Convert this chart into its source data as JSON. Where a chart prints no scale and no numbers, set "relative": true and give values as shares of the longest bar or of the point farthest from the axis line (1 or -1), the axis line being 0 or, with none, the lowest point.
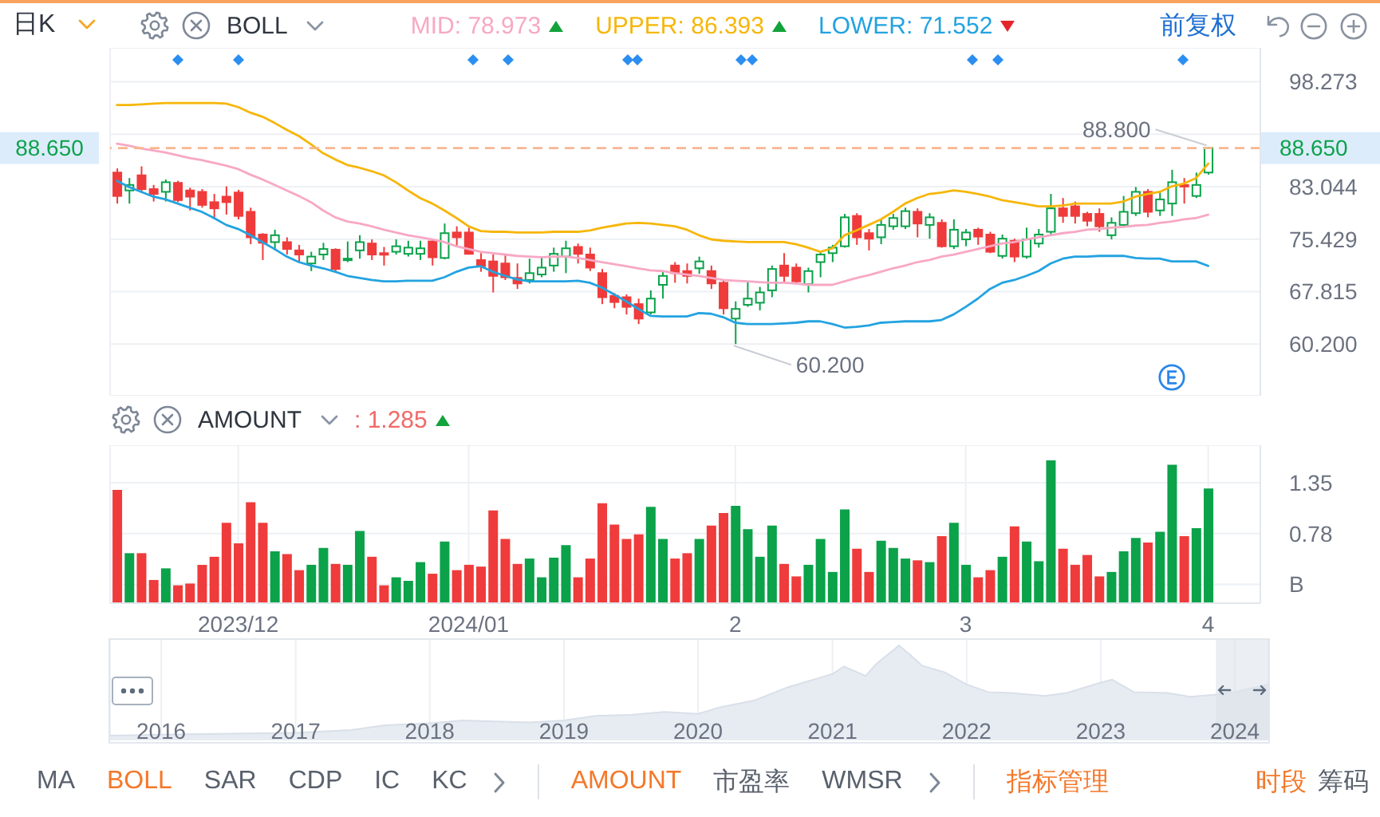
{
  "chart_data": [
    {
      "type": "candlestick",
      "legend_title": "BOLL",
      "legend": "top",
      "categories": [
        null,
        null,
        null,
        null,
        null,
        null,
        null,
        null,
        null,
        null,
        "2023/12",
        null,
        null,
        null,
        null,
        null,
        null,
        null,
        null,
        null,
        null,
        null,
        null,
        null,
        null,
        null,
        null,
        null,
        null,
        "2024/01",
        null,
        null,
        null,
        null,
        null,
        null,
        null,
        null,
        null,
        null,
        null,
        null,
        null,
        null,
        null,
        null,
        null,
        null,
        null,
        null,
        null,
        "2",
        null,
        null,
        null,
        null,
        null,
        null,
        null,
        null,
        null,
        null,
        null,
        null,
        null,
        null,
        null,
        null,
        null,
        null,
        "3",
        null,
        null,
        null,
        null,
        null,
        null,
        null,
        null,
        null,
        null,
        null,
        null,
        null,
        null,
        null,
        null,
        null,
        null,
        null,
        "4"
      ],
      "ohlc": [
        [
          85.1,
          85.7,
          80.6,
          81.7
        ],
        [
          82.5,
          84.3,
          80.6,
          83.3
        ],
        [
          84.7,
          86.0,
          82.3,
          82.7
        ],
        [
          82.7,
          83.3,
          80.9,
          82.0
        ],
        [
          82.3,
          84.1,
          80.9,
          83.7
        ],
        [
          83.6,
          83.9,
          80.8,
          81.1
        ],
        [
          82.5,
          82.9,
          79.6,
          81.6
        ],
        [
          82.3,
          82.7,
          80.0,
          80.4
        ],
        [
          80.8,
          82.0,
          78.3,
          79.9
        ],
        [
          81.6,
          83.1,
          79.0,
          80.8
        ],
        [
          82.2,
          82.6,
          78.3,
          78.8
        ],
        [
          79.4,
          80.0,
          74.7,
          75.7
        ],
        [
          76.1,
          76.3,
          72.4,
          74.9
        ],
        [
          75.0,
          76.8,
          73.8,
          76.0
        ],
        [
          75.0,
          75.7,
          73.2,
          74.0
        ],
        [
          73.8,
          74.6,
          72.1,
          73.2
        ],
        [
          71.9,
          73.6,
          70.8,
          72.9
        ],
        [
          73.2,
          74.9,
          72.4,
          74.0
        ],
        [
          73.9,
          74.1,
          70.7,
          71.1
        ],
        [
          72.5,
          75.1,
          72.1,
          72.6
        ],
        [
          73.8,
          76.0,
          72.6,
          75.0
        ],
        [
          74.8,
          75.4,
          72.4,
          73.2
        ],
        [
          73.4,
          74.3,
          71.6,
          73.3
        ],
        [
          73.6,
          75.4,
          73.2,
          74.4
        ],
        [
          73.3,
          75.2,
          72.9,
          74.2
        ],
        [
          73.3,
          75.2,
          72.4,
          74.1
        ],
        [
          75.1,
          75.5,
          71.6,
          72.8
        ],
        [
          72.7,
          77.7,
          72.5,
          76.3
        ],
        [
          76.4,
          77.3,
          74.3,
          75.7
        ],
        [
          76.4,
          77.1,
          73.2,
          73.3
        ],
        [
          72.4,
          73.4,
          70.7,
          71.5
        ],
        [
          72.2,
          73.2,
          67.7,
          70.1
        ],
        [
          71.9,
          73.2,
          69.5,
          69.9
        ],
        [
          69.8,
          71.9,
          68.2,
          69.0
        ],
        [
          69.5,
          72.6,
          69.0,
          70.5
        ],
        [
          70.3,
          72.8,
          69.9,
          71.3
        ],
        [
          71.6,
          74.2,
          70.7,
          73.3
        ],
        [
          72.9,
          75.2,
          70.5,
          74.1
        ],
        [
          74.3,
          74.8,
          71.9,
          73.3
        ],
        [
          73.2,
          74.2,
          70.8,
          71.3
        ],
        [
          70.5,
          71.1,
          66.0,
          67.0
        ],
        [
          67.2,
          67.6,
          65.4,
          66.3
        ],
        [
          67.0,
          67.4,
          64.5,
          65.6
        ],
        [
          66.0,
          66.8,
          63.1,
          63.9
        ],
        [
          64.8,
          68.0,
          64.5,
          66.8
        ],
        [
          68.8,
          70.7,
          66.8,
          70.1
        ],
        [
          71.6,
          72.1,
          69.1,
          70.5
        ],
        [
          70.8,
          71.9,
          69.0,
          70.1
        ],
        [
          71.2,
          72.9,
          70.4,
          72.2
        ],
        [
          70.8,
          71.6,
          68.2,
          69.0
        ],
        [
          69.1,
          69.5,
          64.5,
          65.4
        ],
        [
          63.9,
          66.4,
          60.2,
          65.3
        ],
        [
          65.9,
          69.3,
          65.6,
          66.8
        ],
        [
          66.2,
          68.5,
          65.1,
          67.7
        ],
        [
          68.0,
          71.6,
          67.0,
          71.1
        ],
        [
          71.6,
          73.4,
          69.1,
          70.1
        ],
        [
          71.3,
          71.9,
          69.0,
          69.3
        ],
        [
          68.9,
          71.3,
          67.7,
          70.8
        ],
        [
          72.1,
          73.6,
          69.9,
          73.2
        ],
        [
          73.4,
          74.6,
          72.1,
          74.2
        ],
        [
          74.4,
          79.1,
          74.2,
          78.6
        ],
        [
          78.8,
          79.2,
          74.6,
          75.7
        ],
        [
          76.3,
          76.9,
          73.8,
          75.5
        ],
        [
          75.7,
          78.3,
          74.7,
          77.5
        ],
        [
          77.3,
          79.1,
          76.8,
          78.5
        ],
        [
          77.3,
          80.0,
          76.9,
          79.5
        ],
        [
          79.4,
          79.9,
          75.7,
          77.7
        ],
        [
          77.5,
          79.2,
          75.5,
          78.6
        ],
        [
          77.8,
          78.3,
          74.2,
          74.4
        ],
        [
          74.4,
          78.3,
          74.0,
          76.8
        ],
        [
          75.4,
          76.9,
          74.4,
          76.4
        ],
        [
          76.8,
          77.1,
          74.6,
          75.8
        ],
        [
          76.1,
          76.5,
          73.4,
          73.6
        ],
        [
          73.0,
          76.1,
          72.6,
          75.5
        ],
        [
          75.2,
          75.5,
          72.1,
          72.9
        ],
        [
          72.9,
          77.1,
          72.6,
          75.4
        ],
        [
          74.8,
          76.9,
          74.2,
          76.1
        ],
        [
          76.5,
          82.0,
          76.0,
          79.9
        ],
        [
          79.9,
          81.4,
          77.8,
          78.8
        ],
        [
          80.2,
          80.9,
          77.7,
          78.8
        ],
        [
          79.1,
          79.4,
          77.3,
          78.1
        ],
        [
          79.1,
          79.9,
          76.5,
          77.3
        ],
        [
          76.0,
          78.6,
          75.4,
          77.8
        ],
        [
          77.5,
          81.7,
          77.3,
          79.4
        ],
        [
          79.2,
          83.0,
          78.8,
          82.3
        ],
        [
          82.3,
          82.7,
          78.6,
          79.4
        ],
        [
          79.6,
          82.3,
          78.8,
          81.2
        ],
        [
          80.6,
          85.5,
          78.8,
          83.7
        ],
        [
          83.3,
          84.3,
          80.6,
          83.1
        ],
        [
          81.7,
          85.1,
          81.4,
          83.3
        ],
        [
          85.1,
          88.8,
          84.8,
          88.65
        ]
      ],
      "colors": [
        "#ef3b3b",
        "#0ba24a",
        "#ef3b3b",
        "#ef3b3b",
        "#0ba24a",
        "#ef3b3b",
        "#ef3b3b",
        "#ef3b3b",
        "#ef3b3b",
        "#ef3b3b",
        "#ef3b3b",
        "#ef3b3b",
        "#ef3b3b",
        "#0ba24a",
        "#ef3b3b",
        "#ef3b3b",
        "#0ba24a",
        "#0ba24a",
        "#ef3b3b",
        "#0ba24a",
        "#0ba24a",
        "#ef3b3b",
        "#ef3b3b",
        "#0ba24a",
        "#0ba24a",
        "#0ba24a",
        "#ef3b3b",
        "#0ba24a",
        "#ef3b3b",
        "#ef3b3b",
        "#ef3b3b",
        "#ef3b3b",
        "#ef3b3b",
        "#ef3b3b",
        "#0ba24a",
        "#0ba24a",
        "#0ba24a",
        "#0ba24a",
        "#ef3b3b",
        "#ef3b3b",
        "#ef3b3b",
        "#ef3b3b",
        "#ef3b3b",
        "#ef3b3b",
        "#0ba24a",
        "#0ba24a",
        "#ef3b3b",
        "#ef3b3b",
        "#0ba24a",
        "#ef3b3b",
        "#ef3b3b",
        "#0ba24a",
        "#0ba24a",
        "#0ba24a",
        "#0ba24a",
        "#ef3b3b",
        "#ef3b3b",
        "#0ba24a",
        "#0ba24a",
        "#0ba24a",
        "#0ba24a",
        "#ef3b3b",
        "#ef3b3b",
        "#0ba24a",
        "#0ba24a",
        "#0ba24a",
        "#ef3b3b",
        "#0ba24a",
        "#ef3b3b",
        "#0ba24a",
        "#0ba24a",
        "#ef3b3b",
        "#ef3b3b",
        "#0ba24a",
        "#ef3b3b",
        "#0ba24a",
        "#0ba24a",
        "#0ba24a",
        "#ef3b3b",
        "#ef3b3b",
        "#ef3b3b",
        "#ef3b3b",
        "#0ba24a",
        "#0ba24a",
        "#0ba24a",
        "#ef3b3b",
        "#0ba24a",
        "#0ba24a",
        "#ef3b3b",
        "#0ba24a",
        "#0ba24a"
      ],
      "series": [
        {
          "name": "MID",
          "type": "line",
          "color": "#f7a8c4",
          "values": [
            89.3,
            89.0,
            88.6,
            88.3,
            88.0,
            87.6,
            87.2,
            86.9,
            86.5,
            86.1,
            85.6,
            84.8,
            84.1,
            83.3,
            82.5,
            81.7,
            80.8,
            79.6,
            78.6,
            78.0,
            77.7,
            77.3,
            76.8,
            76.4,
            76.0,
            75.7,
            75.4,
            75.0,
            74.4,
            74.0,
            73.6,
            73.4,
            73.2,
            73.0,
            72.9,
            72.8,
            72.9,
            72.9,
            72.7,
            72.4,
            72.1,
            71.8,
            71.5,
            71.2,
            70.9,
            70.8,
            70.5,
            70.3,
            70.1,
            69.8,
            69.5,
            69.4,
            69.3,
            69.2,
            69.1,
            69.1,
            69.0,
            68.8,
            68.8,
            68.8,
            69.3,
            69.8,
            70.2,
            70.7,
            71.2,
            71.6,
            72.1,
            72.4,
            72.9,
            73.2,
            73.6,
            74.0,
            74.4,
            74.8,
            75.0,
            75.4,
            75.7,
            76.0,
            76.3,
            76.5,
            76.8,
            76.9,
            77.1,
            77.2,
            77.4,
            77.5,
            77.8,
            78.0,
            78.3,
            78.5,
            78.973
          ]
        },
        {
          "name": "UPPER",
          "type": "line",
          "color": "#f6b60a",
          "values": [
            94.9,
            94.9,
            95.0,
            95.1,
            95.2,
            95.2,
            95.2,
            95.2,
            95.2,
            95.1,
            94.6,
            93.8,
            93.2,
            92.3,
            91.3,
            90.4,
            89.2,
            87.9,
            87.0,
            86.2,
            85.8,
            85.3,
            84.7,
            83.7,
            82.5,
            81.4,
            80.6,
            79.6,
            78.5,
            77.3,
            76.6,
            76.5,
            76.5,
            76.4,
            76.4,
            76.4,
            76.5,
            76.5,
            76.5,
            76.7,
            77.1,
            77.4,
            77.7,
            77.8,
            77.7,
            77.5,
            77.3,
            76.8,
            76.0,
            75.4,
            75.2,
            75.1,
            75.0,
            75.0,
            75.0,
            75.0,
            74.7,
            74.2,
            73.6,
            74.1,
            76.0,
            76.7,
            77.5,
            78.3,
            79.4,
            80.6,
            81.4,
            82.0,
            82.2,
            82.5,
            82.3,
            82.0,
            81.6,
            81.1,
            80.8,
            80.5,
            80.2,
            80.2,
            80.3,
            80.6,
            80.6,
            80.6,
            80.6,
            80.9,
            81.6,
            82.0,
            82.3,
            83.1,
            83.5,
            84.3,
            86.393
          ]
        },
        {
          "name": "LOWER",
          "type": "line",
          "color": "#23a3e0",
          "values": [
            83.9,
            83.0,
            82.3,
            81.6,
            81.2,
            80.6,
            80.0,
            79.4,
            78.5,
            77.5,
            76.9,
            76.0,
            75.0,
            74.0,
            72.9,
            72.1,
            71.6,
            71.2,
            70.7,
            70.1,
            69.8,
            69.5,
            69.3,
            69.3,
            69.4,
            69.4,
            69.4,
            69.9,
            70.7,
            71.3,
            71.5,
            70.7,
            70.1,
            69.6,
            69.3,
            69.3,
            69.3,
            69.3,
            69.4,
            69.1,
            68.4,
            67.4,
            66.4,
            65.3,
            64.3,
            64.2,
            64.2,
            64.2,
            64.7,
            64.6,
            64.1,
            63.3,
            63.1,
            63.1,
            63.1,
            63.2,
            63.3,
            63.5,
            63.5,
            63.1,
            62.6,
            62.7,
            62.9,
            63.3,
            63.4,
            63.5,
            63.5,
            63.5,
            63.7,
            64.5,
            65.6,
            66.8,
            68.2,
            69.1,
            69.5,
            70.1,
            70.8,
            71.9,
            72.6,
            72.9,
            72.9,
            73.0,
            73.0,
            73.0,
            72.7,
            72.6,
            72.6,
            72.2,
            72.2,
            72.2,
            71.552
          ]
        }
      ],
      "ylim": [
        52.7,
        103.2
      ],
      "yticks": [
        {
          "value": 60.2,
          "label": "60.200"
        },
        67.815,
        75.429,
        83.044,
        {
          "value": 90.658,
          "label": null
        },
        98.273
      ],
      "grid": true,
      "tick_labels": "y",
      "ref_lines": [
        {
          "axis": "y",
          "value": 88.65,
          "label": "88.650",
          "color": "#f9b690",
          "line_style": "dashed"
        }
      ],
      "annotations": [
        "日K",
        "前复权",
        ": 78.973",
        ": 86.393",
        ": 71.552",
        {
          "text": "88.800",
          "x": "4",
          "y": 88.8
        },
        {
          "text": "60.200",
          "x": "2",
          "y": 60.2
        }
      ]
    },
    {
      "type": "bar",
      "legend_title": "AMOUNT",
      "annotations": [
        ": 1.285"
      ],
      "categories": [
        null,
        null,
        null,
        null,
        null,
        null,
        null,
        null,
        null,
        null,
        "2023/12",
        null,
        null,
        null,
        null,
        null,
        null,
        null,
        null,
        null,
        null,
        null,
        null,
        null,
        null,
        null,
        null,
        null,
        null,
        "2024/01",
        null,
        null,
        null,
        null,
        null,
        null,
        null,
        null,
        null,
        null,
        null,
        null,
        null,
        null,
        null,
        null,
        null,
        null,
        null,
        null,
        null,
        "2",
        null,
        null,
        null,
        null,
        null,
        null,
        null,
        null,
        null,
        null,
        null,
        null,
        null,
        null,
        null,
        null,
        null,
        null,
        "3",
        null,
        null,
        null,
        null,
        null,
        null,
        null,
        null,
        null,
        null,
        null,
        null,
        null,
        null,
        null,
        null,
        null,
        null,
        null,
        "4"
      ],
      "values": [
        1.27,
        0.56,
        0.56,
        0.26,
        0.39,
        0.2,
        0.22,
        0.43,
        0.52,
        0.9,
        0.67,
        1.13,
        0.9,
        0.58,
        0.55,
        0.37,
        0.43,
        0.62,
        0.44,
        0.43,
        0.81,
        0.52,
        0.2,
        0.29,
        0.25,
        0.46,
        0.33,
        0.69,
        0.37,
        0.43,
        0.41,
        1.04,
        0.72,
        0.44,
        0.5,
        0.29,
        0.51,
        0.65,
        0.29,
        0.5,
        1.12,
        0.88,
        0.72,
        0.77,
        1.08,
        0.72,
        0.5,
        0.56,
        0.72,
        0.87,
        1.01,
        1.09,
        0.83,
        0.52,
        0.87,
        0.44,
        0.3,
        0.43,
        0.72,
        0.35,
        1.05,
        0.61,
        0.35,
        0.7,
        0.62,
        0.5,
        0.48,
        0.46,
        0.75,
        0.9,
        0.43,
        0.29,
        0.37,
        0.52,
        0.86,
        0.69,
        0.47,
        1.6,
        0.61,
        0.43,
        0.54,
        0.3,
        0.35,
        0.58,
        0.73,
        0.68,
        0.8,
        1.55,
        0.75,
        0.84,
        1.285
      ],
      "colors": [
        "#ef3b3b",
        "#0ba24a",
        "#ef3b3b",
        "#ef3b3b",
        "#0ba24a",
        "#ef3b3b",
        "#ef3b3b",
        "#ef3b3b",
        "#ef3b3b",
        "#ef3b3b",
        "#ef3b3b",
        "#ef3b3b",
        "#ef3b3b",
        "#0ba24a",
        "#ef3b3b",
        "#ef3b3b",
        "#0ba24a",
        "#0ba24a",
        "#ef3b3b",
        "#0ba24a",
        "#0ba24a",
        "#ef3b3b",
        "#ef3b3b",
        "#0ba24a",
        "#0ba24a",
        "#0ba24a",
        "#ef3b3b",
        "#0ba24a",
        "#ef3b3b",
        "#ef3b3b",
        "#ef3b3b",
        "#ef3b3b",
        "#ef3b3b",
        "#ef3b3b",
        "#0ba24a",
        "#0ba24a",
        "#0ba24a",
        "#0ba24a",
        "#ef3b3b",
        "#ef3b3b",
        "#ef3b3b",
        "#ef3b3b",
        "#ef3b3b",
        "#ef3b3b",
        "#0ba24a",
        "#0ba24a",
        "#ef3b3b",
        "#ef3b3b",
        "#0ba24a",
        "#ef3b3b",
        "#ef3b3b",
        "#0ba24a",
        "#0ba24a",
        "#0ba24a",
        "#0ba24a",
        "#ef3b3b",
        "#ef3b3b",
        "#0ba24a",
        "#0ba24a",
        "#0ba24a",
        "#0ba24a",
        "#ef3b3b",
        "#ef3b3b",
        "#0ba24a",
        "#0ba24a",
        "#0ba24a",
        "#ef3b3b",
        "#0ba24a",
        "#ef3b3b",
        "#0ba24a",
        "#0ba24a",
        "#ef3b3b",
        "#ef3b3b",
        "#0ba24a",
        "#ef3b3b",
        "#0ba24a",
        "#0ba24a",
        "#0ba24a",
        "#ef3b3b",
        "#ef3b3b",
        "#ef3b3b",
        "#ef3b3b",
        "#0ba24a",
        "#0ba24a",
        "#0ba24a",
        "#ef3b3b",
        "#0ba24a",
        "#0ba24a",
        "#ef3b3b",
        "#0ba24a",
        "#0ba24a"
      ],
      "ylim": [
        0,
        1.77
      ],
      "yticks": [
        {
          "value": 0.21,
          "label": "B"
        },
        0.78,
        1.35
      ],
      "grid": true
    },
    {
      "type": "area",
      "relative": true,
      "x": [
        "2015-08-15",
        "2016-01",
        "2016-06",
        "2017-01",
        "2017-06",
        "2017-09",
        "2018-01",
        "2018-04",
        "2018-07",
        "2018-10",
        "2019-01",
        "2019-04",
        "2019-07",
        "2019-10",
        "2020-01",
        "2020-03",
        "2020-06",
        "2020-09",
        "2021-01",
        "2021-02",
        "2021-04",
        "2021-05",
        "2021-07",
        "2021-08",
        "2021-09",
        "2021-11",
        "2022-01",
        "2022-03",
        "2022-05",
        "2022-08",
        "2022-10",
        "2023-01",
        "2023-02",
        "2023-04",
        "2023-07",
        "2023-09",
        "2023-11",
        "2024-01",
        "2024-04-01"
      ],
      "values": [
        0.05,
        0.06,
        0.07,
        0.08,
        0.11,
        0.16,
        0.18,
        0.21,
        0.2,
        0.19,
        0.21,
        0.26,
        0.27,
        0.3,
        0.28,
        0.35,
        0.42,
        0.56,
        0.7,
        0.78,
        0.68,
        0.81,
        1,
        0.9,
        0.79,
        0.72,
        0.59,
        0.51,
        0.5,
        0.47,
        0.5,
        0.61,
        0.64,
        0.51,
        0.5,
        0.46,
        0.48,
        0.51,
        0.59
      ],
      "color": "#e7ecf2",
      "xlim": [
        "2015-08-15",
        "2024-04-01"
      ],
      "xticks": [
        "2016",
        "2017",
        "2018",
        "2019",
        "2020",
        "2021",
        "2022",
        "2023",
        "2024"
      ],
      "grid": "x",
      "bands": [
        {
          "axis": "x",
          "from": "2023-11-10",
          "to": "2024-04-01",
          "color": "#dde3ea"
        }
      ]
    },
    {
      "type": "other",
      "categories": [
        "MA",
        "BOLL",
        "SAR",
        "CDP",
        "IC",
        "KC",
        "AMOUNT",
        "市盈率",
        "WMSR",
        "指标管理",
        "时段",
        "筹码"
      ],
      "colors": [
        "#59616d",
        "#f4782a",
        "#59616d",
        "#59616d",
        "#59616d",
        "#59616d",
        "#f4782a",
        "#59616d",
        "#59616d",
        "#f4782a",
        "#f4782a",
        "#59616d"
      ]
    }
  ]
}
